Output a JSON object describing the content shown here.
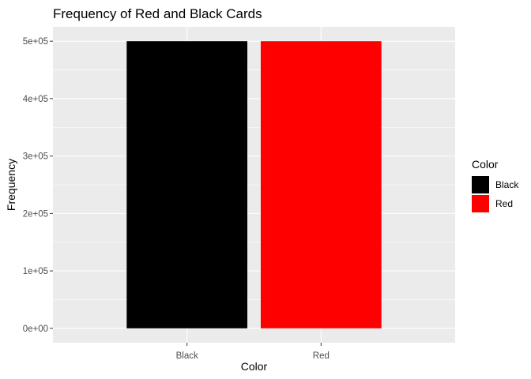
{
  "chart_data": {
    "type": "bar",
    "title": "Frequency of Red and Black Cards",
    "xlabel": "Color",
    "ylabel": "Frequency",
    "categories": [
      "Black",
      "Red"
    ],
    "values": [
      500000,
      500000
    ],
    "colors": [
      "#000000",
      "#ff0000"
    ],
    "ylim": [
      -25000,
      525000
    ],
    "yticks": [
      0,
      100000,
      200000,
      300000,
      400000,
      500000
    ],
    "ytick_labels": [
      "0e+00",
      "1e+05",
      "2e+05",
      "3e+05",
      "4e+05",
      "5e+05"
    ],
    "grid": true,
    "panel_background": "#ebebeb",
    "legend": {
      "title": "Color",
      "placement": "right",
      "entries": [
        {
          "label": "Black",
          "color": "#000000"
        },
        {
          "label": "Red",
          "color": "#ff0000"
        }
      ]
    }
  }
}
